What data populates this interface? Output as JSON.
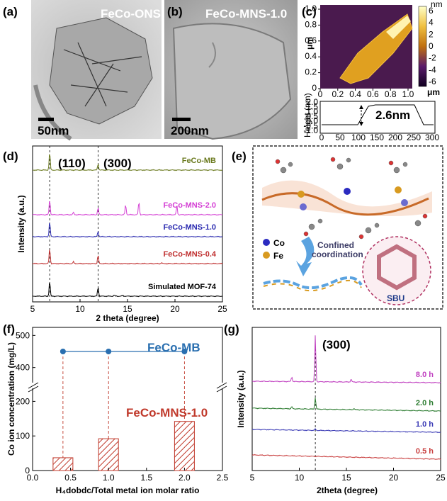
{
  "panels": {
    "a": {
      "label": "(a)",
      "caption": "FeCo-ONS",
      "scale": "50nm"
    },
    "b": {
      "label": "(b)",
      "caption": "FeCo-MNS-1.0",
      "scale": "200nm"
    },
    "c": {
      "label": "(c)",
      "ylabel_map": "μm",
      "xunit_map": "μm",
      "map_ticks_x": [
        "0",
        "0.2",
        "0.4",
        "0.6",
        "0.8",
        "1.0"
      ],
      "map_ticks_y": [
        "0",
        "0.2",
        "0.4",
        "0.6",
        "0.8",
        "1.0"
      ],
      "colorbar_unit": "nm",
      "colorbar_ticks": [
        "6",
        "4",
        "2",
        "0",
        "-2",
        "-4",
        "-6"
      ],
      "profile_ylabel": "Height (nm)",
      "profile_yticks": [
        "2.0",
        "1.5",
        "1.0",
        "0.5",
        "0.0",
        "-0.5",
        "-1.0"
      ],
      "profile_xticks": [
        "0",
        "50",
        "100",
        "150",
        "200",
        "250",
        "300"
      ],
      "thickness": "2.6nm"
    },
    "d": {
      "label": "(d)",
      "ylabel": "Intensity (a.u.)",
      "xlabel": "2 theta (degree)",
      "peak1": "(110)",
      "peak2": "(300)"
    },
    "e": {
      "label": "(e)",
      "legend_co": "Co",
      "legend_fe": "Fe",
      "arrow_text_1": "Confined",
      "arrow_text_2": "coordination",
      "sbu": "SBU"
    },
    "f": {
      "label": "(f)",
      "ylabel": "Co ion concentration (mg/L)",
      "xlabel": "H₄dobdc/Total metal ion molar ratio",
      "series_mb": "FeCo-MB",
      "series_mns": "FeCo-MNS-1.0"
    },
    "g": {
      "label": "(g)",
      "ylabel": "Intensity (a.u.)",
      "xlabel": "2theta (degree)",
      "peak": "(300)"
    }
  },
  "colors": {
    "mb": "#6b7a1f",
    "mns20": "#d43fd4",
    "mns10": "#2b2bb0",
    "mns04": "#c03030",
    "sim": "#000000",
    "blue_series": "#2a6fb0",
    "red_bar": "#c0392b",
    "g8": "#c040c0",
    "g2": "#2e7d32",
    "g1": "#3a3ab5",
    "g05": "#c94040"
  },
  "chart_data": [
    {
      "id": "d",
      "type": "line",
      "xlabel": "2 theta (degree)",
      "ylabel": "Intensity (a.u.)",
      "xlim": [
        5,
        25
      ],
      "xticks": [
        5,
        10,
        15,
        20,
        25
      ],
      "reference_lines": [
        6.8,
        11.9
      ],
      "series": [
        {
          "name": "FeCo-MB",
          "peaks": [
            [
              6.8,
              1.0
            ],
            [
              11.9,
              0.35
            ]
          ]
        },
        {
          "name": "FeCo-MNS-2.0",
          "peaks": [
            [
              6.8,
              1.0
            ],
            [
              9.3,
              0.15
            ],
            [
              11.9,
              0.45
            ],
            [
              14.8,
              0.65
            ],
            [
              16.2,
              0.85
            ],
            [
              20.2,
              0.55
            ]
          ]
        },
        {
          "name": "FeCo-MNS-1.0",
          "peaks": [
            [
              6.8,
              1.0
            ],
            [
              11.9,
              0.35
            ]
          ]
        },
        {
          "name": "FeCo-MNS-0.4",
          "peaks": [
            [
              6.8,
              1.0
            ],
            [
              9.3,
              0.12
            ],
            [
              11.9,
              0.55
            ],
            [
              18.6,
              0.05
            ]
          ]
        },
        {
          "name": "Simulated MOF-74",
          "peaks": [
            [
              6.8,
              1.0
            ],
            [
              11.9,
              0.6
            ],
            [
              13.6,
              0.08
            ],
            [
              14.5,
              0.05
            ]
          ]
        }
      ]
    },
    {
      "id": "f",
      "type": "bar",
      "xlabel": "H₄dobdc/Total metal ion molar ratio",
      "ylabel": "Co ion concentration (mg/L)",
      "xlim": [
        0.0,
        2.5
      ],
      "xticks": [
        0.0,
        0.5,
        1.0,
        1.5,
        2.0,
        2.5
      ],
      "yticks_lower": [
        0,
        100,
        200
      ],
      "yticks_upper": [
        400,
        500
      ],
      "series": [
        {
          "name": "FeCo-MB",
          "type": "line",
          "x": [
            0.4,
            1.0,
            2.0
          ],
          "values": [
            450,
            450,
            450
          ]
        },
        {
          "name": "FeCo-MNS-1.0",
          "type": "bar",
          "x": [
            0.4,
            1.0,
            2.0
          ],
          "values": [
            37,
            92,
            142
          ]
        }
      ]
    },
    {
      "id": "g",
      "type": "line",
      "xlabel": "2theta (degree)",
      "ylabel": "Intensity (a.u.)",
      "xlim": [
        5,
        25
      ],
      "xticks": [
        5,
        10,
        15,
        20,
        25
      ],
      "reference_lines": [
        11.7
      ],
      "series": [
        {
          "name": "8.0 h",
          "peaks": [
            [
              9.2,
              0.1
            ],
            [
              11.7,
              1.0
            ],
            [
              15.5,
              0.06
            ]
          ]
        },
        {
          "name": "2.0 h",
          "peaks": [
            [
              9.2,
              0.1
            ],
            [
              11.7,
              0.55
            ],
            [
              15.8,
              0.06
            ]
          ]
        },
        {
          "name": "1.0 h",
          "peaks": [
            [
              11.7,
              0.06
            ]
          ]
        },
        {
          "name": "0.5 h",
          "peaks": []
        }
      ]
    }
  ]
}
